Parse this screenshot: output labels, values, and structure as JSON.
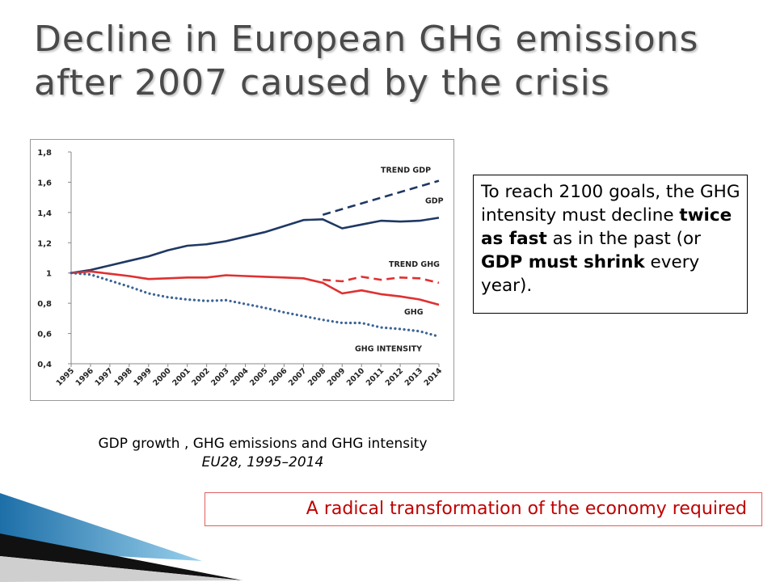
{
  "slide": {
    "title_line1": "Decline in European GHG emissions",
    "title_line2": "after 2007 caused by the crisis"
  },
  "note": {
    "part1": "To reach 2100 goals, the GHG intensity must decline ",
    "bold1": "twice as fast",
    "part2": " as in the past (or ",
    "bold2": "GDP must shrink",
    "part3": " every year)."
  },
  "caption": {
    "line1": "GDP growth , GHG emissions and GHG intensity",
    "line2": "EU28, 1995–2014"
  },
  "callout": {
    "text": "A radical transformation of the economy required"
  },
  "colors": {
    "navy": "#1f3864",
    "red": "#e03030",
    "blue_dots": "#3b6496",
    "callout_red": "#c00000",
    "deco_blue": "#1d6fa8"
  },
  "chart_data": {
    "type": "line",
    "x": [
      "1995",
      "1996",
      "1997",
      "1998",
      "1999",
      "2000",
      "2001",
      "2002",
      "2003",
      "2004",
      "2005",
      "2006",
      "2007",
      "2008",
      "2009",
      "2010",
      "2011",
      "2012",
      "2013",
      "2014"
    ],
    "ylim": [
      0.4,
      1.8
    ],
    "yticks": [
      0.4,
      0.6,
      0.8,
      1.0,
      1.2,
      1.4,
      1.6,
      1.8
    ],
    "ytick_labels": [
      "0,4",
      "0,6",
      "0,8",
      "1",
      "1,2",
      "1,4",
      "1,6",
      "1,8"
    ],
    "grid": false,
    "series": [
      {
        "name": "GDP",
        "style": "solid",
        "color": "#1f3864",
        "values": [
          1.0,
          1.02,
          1.05,
          1.08,
          1.11,
          1.15,
          1.18,
          1.19,
          1.21,
          1.24,
          1.27,
          1.31,
          1.35,
          1.355,
          1.295,
          1.32,
          1.345,
          1.34,
          1.345,
          1.365
        ]
      },
      {
        "name": "TREND GDP",
        "style": "dashed",
        "color": "#1f3864",
        "x": [
          "2008",
          "2014"
        ],
        "values": [
          1.385,
          1.61
        ]
      },
      {
        "name": "GHG",
        "style": "solid",
        "color": "#e03030",
        "values": [
          1.0,
          1.01,
          0.995,
          0.98,
          0.96,
          0.965,
          0.97,
          0.97,
          0.985,
          0.98,
          0.975,
          0.97,
          0.965,
          0.935,
          0.865,
          0.885,
          0.86,
          0.845,
          0.825,
          0.79
        ]
      },
      {
        "name": "TREND GHG",
        "style": "dashed",
        "color": "#e03030",
        "x": [
          "2008",
          "2009",
          "2010",
          "2011",
          "2012",
          "2013",
          "2014"
        ],
        "values": [
          0.955,
          0.945,
          0.975,
          0.955,
          0.97,
          0.965,
          0.935
        ]
      },
      {
        "name": "GHG INTENSITY",
        "style": "dotted",
        "color": "#3b6496",
        "values": [
          1.0,
          0.99,
          0.95,
          0.91,
          0.865,
          0.84,
          0.825,
          0.815,
          0.82,
          0.795,
          0.77,
          0.74,
          0.715,
          0.69,
          0.67,
          0.67,
          0.64,
          0.63,
          0.615,
          0.58
        ]
      }
    ],
    "labels": [
      {
        "text": "TREND GDP",
        "series": "TREND GDP"
      },
      {
        "text": "GDP",
        "series": "GDP"
      },
      {
        "text": "TREND GHG",
        "series": "TREND GHG"
      },
      {
        "text": "GHG",
        "series": "GHG"
      },
      {
        "text": "GHG INTENSITY",
        "series": "GHG INTENSITY"
      }
    ]
  }
}
